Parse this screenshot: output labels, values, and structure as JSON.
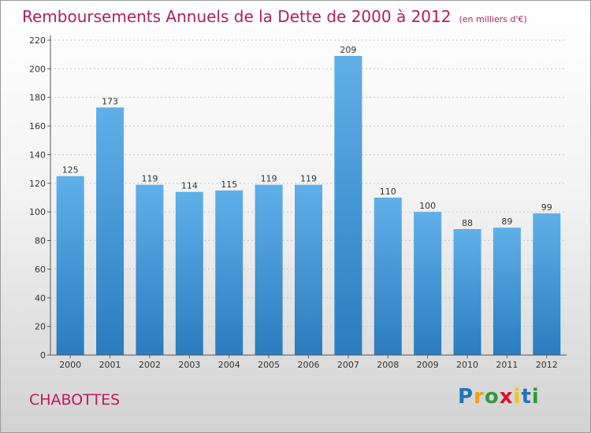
{
  "title": "Remboursements Annuels de la Dette de 2000 à 2012",
  "unit": "(en milliers d'€)",
  "commune": "CHABOTTES",
  "logo": {
    "letters": [
      "P",
      "r",
      "o",
      "x",
      "i",
      "t",
      "i"
    ],
    "colors": [
      "#1e73be",
      "#f39c12",
      "#2e9b3b",
      "#d6172b",
      "#f1c40f",
      "#1e73be",
      "#2e9b3b"
    ]
  },
  "colors": {
    "bar": "#4aa0dd",
    "bar_top": "#5fb0e9",
    "bar_bottom": "#2a7cbf"
  },
  "chart_data": {
    "type": "bar",
    "categories": [
      "2000",
      "2001",
      "2002",
      "2003",
      "2004",
      "2005",
      "2006",
      "2007",
      "2008",
      "2009",
      "2010",
      "2011",
      "2012"
    ],
    "values": [
      125,
      173,
      119,
      114,
      115,
      119,
      119,
      209,
      110,
      100,
      88,
      89,
      99
    ],
    "ylim": [
      0,
      220
    ],
    "yticks": [
      0,
      20,
      40,
      60,
      80,
      100,
      120,
      140,
      160,
      180,
      200,
      220
    ],
    "grid": true
  }
}
